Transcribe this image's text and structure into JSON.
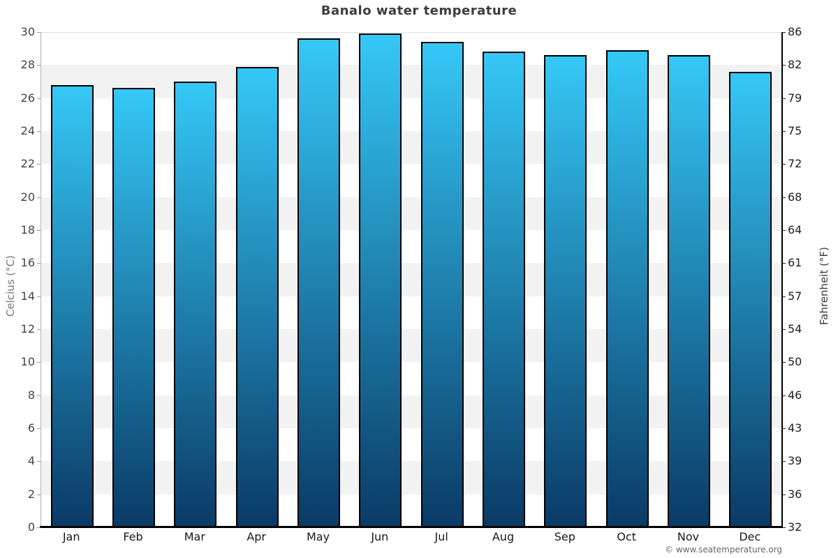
{
  "page": {
    "copyright": "© www.seatemperature.org"
  },
  "chart_data": {
    "type": "bar",
    "title": "Banalo water temperature",
    "categories": [
      "Jan",
      "Feb",
      "Mar",
      "Apr",
      "May",
      "Jun",
      "Jul",
      "Aug",
      "Sep",
      "Oct",
      "Nov",
      "Dec"
    ],
    "values": [
      26.8,
      26.6,
      27.0,
      27.9,
      29.6,
      29.9,
      29.4,
      28.8,
      28.6,
      28.9,
      28.6,
      27.6
    ],
    "unit": "°C",
    "ylabel_left": "Celcius (°C)",
    "ylabel_right": "Fahrenheit (°F)",
    "yticks_left": [
      30,
      28,
      26,
      24,
      22,
      20,
      18,
      16,
      14,
      12,
      10,
      8,
      6,
      4,
      2,
      0
    ],
    "yticks_right": [
      86,
      82,
      79,
      75,
      72,
      68,
      64,
      61,
      57,
      54,
      50,
      46,
      43,
      39,
      36,
      32
    ],
    "ylim": [
      0,
      30
    ],
    "grid": "alternating horizontal bands every 2°C",
    "legend": "none",
    "colors": {
      "bar_gradient_top": "#35c8f7",
      "bar_gradient_bottom": "#0a3a66",
      "bar_outline": "#000000",
      "band_light": "#ffffff",
      "band_dark": "#f2f2f2",
      "left_axis_line": "#b3b3b3",
      "right_axis_line": "#000000",
      "bottom_axis_line": "#000000",
      "title_color": "#3d3d3d"
    }
  }
}
